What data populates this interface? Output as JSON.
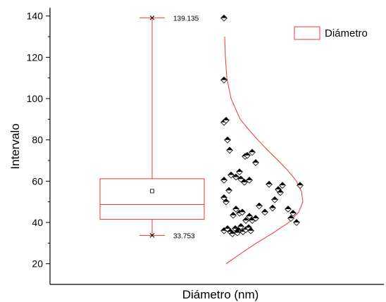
{
  "chart_data": {
    "type": "box",
    "xlabel": "Diámetro (nm)",
    "ylabel": "Intervalo",
    "ylim": [
      10,
      144
    ],
    "yticks": [
      20,
      40,
      60,
      80,
      100,
      120,
      140
    ],
    "grid": false,
    "legend": {
      "position": "top-right",
      "entries": [
        "Diámetro"
      ]
    },
    "colors": {
      "box": "#e8393c",
      "points": "#000000",
      "curve": "#e8393c"
    },
    "box": {
      "q1": 41.5,
      "median": 48.7,
      "q3": 61.2,
      "mean": 55.2,
      "whisker_low": 33.753,
      "whisker_high": 139.135,
      "whisker_low_label": "33.753",
      "whisker_high_label": "139.135"
    },
    "points": [
      {
        "x": 0,
        "y": 139
      },
      {
        "x": 0,
        "y": 109
      },
      {
        "x": 0,
        "y": 88.5
      },
      {
        "x": 3,
        "y": 89.5
      },
      {
        "x": 5,
        "y": 80
      },
      {
        "x": 8,
        "y": 75
      },
      {
        "x": 30,
        "y": 72
      },
      {
        "x": 33,
        "y": 72.5
      },
      {
        "x": 40,
        "y": 74
      },
      {
        "x": 45,
        "y": 69
      },
      {
        "x": 0,
        "y": 60.5
      },
      {
        "x": 10,
        "y": 63
      },
      {
        "x": 17,
        "y": 62
      },
      {
        "x": 22,
        "y": 64.5
      },
      {
        "x": 24,
        "y": 61
      },
      {
        "x": 29,
        "y": 59.5
      },
      {
        "x": 36,
        "y": 60.5
      },
      {
        "x": 64,
        "y": 58.5
      },
      {
        "x": 77,
        "y": 56
      },
      {
        "x": 83,
        "y": 58
      },
      {
        "x": 80,
        "y": 54.5
      },
      {
        "x": 108,
        "y": 58
      },
      {
        "x": 72,
        "y": 51
      },
      {
        "x": 0,
        "y": 52
      },
      {
        "x": 3,
        "y": 50
      },
      {
        "x": 7,
        "y": 55.5
      },
      {
        "x": 17,
        "y": 46.5
      },
      {
        "x": 22,
        "y": 44.5
      },
      {
        "x": 26,
        "y": 45
      },
      {
        "x": 13,
        "y": 43.5
      },
      {
        "x": 31,
        "y": 41
      },
      {
        "x": 36,
        "y": 43
      },
      {
        "x": 40,
        "y": 41
      },
      {
        "x": 45,
        "y": 42
      },
      {
        "x": 50,
        "y": 48
      },
      {
        "x": 58,
        "y": 45
      },
      {
        "x": 69,
        "y": 47
      },
      {
        "x": 91,
        "y": 46.5
      },
      {
        "x": 98,
        "y": 44.5
      },
      {
        "x": 95,
        "y": 42
      },
      {
        "x": 103,
        "y": 40
      },
      {
        "x": 0,
        "y": 36
      },
      {
        "x": 5,
        "y": 37
      },
      {
        "x": 9,
        "y": 35.5
      },
      {
        "x": 12,
        "y": 34.5
      },
      {
        "x": 16,
        "y": 37
      },
      {
        "x": 20,
        "y": 36
      },
      {
        "x": 24,
        "y": 38
      },
      {
        "x": 27,
        "y": 35.5
      },
      {
        "x": 31,
        "y": 36.5
      },
      {
        "x": 35,
        "y": 37.5
      },
      {
        "x": 38,
        "y": 36
      },
      {
        "x": 19,
        "y": 35
      }
    ],
    "curve": [
      {
        "y": 130,
        "x": 1
      },
      {
        "y": 120,
        "x": 2
      },
      {
        "y": 110,
        "x": 4
      },
      {
        "y": 100,
        "x": 10
      },
      {
        "y": 90,
        "x": 23
      },
      {
        "y": 85,
        "x": 35
      },
      {
        "y": 80,
        "x": 48
      },
      {
        "y": 75,
        "x": 62
      },
      {
        "y": 70,
        "x": 77
      },
      {
        "y": 65,
        "x": 91
      },
      {
        "y": 60,
        "x": 103
      },
      {
        "y": 55,
        "x": 110
      },
      {
        "y": 50,
        "x": 112
      },
      {
        "y": 45,
        "x": 106
      },
      {
        "y": 40,
        "x": 92
      },
      {
        "y": 35,
        "x": 70
      },
      {
        "y": 30,
        "x": 46
      },
      {
        "y": 25,
        "x": 24
      },
      {
        "y": 20,
        "x": 3
      }
    ]
  }
}
